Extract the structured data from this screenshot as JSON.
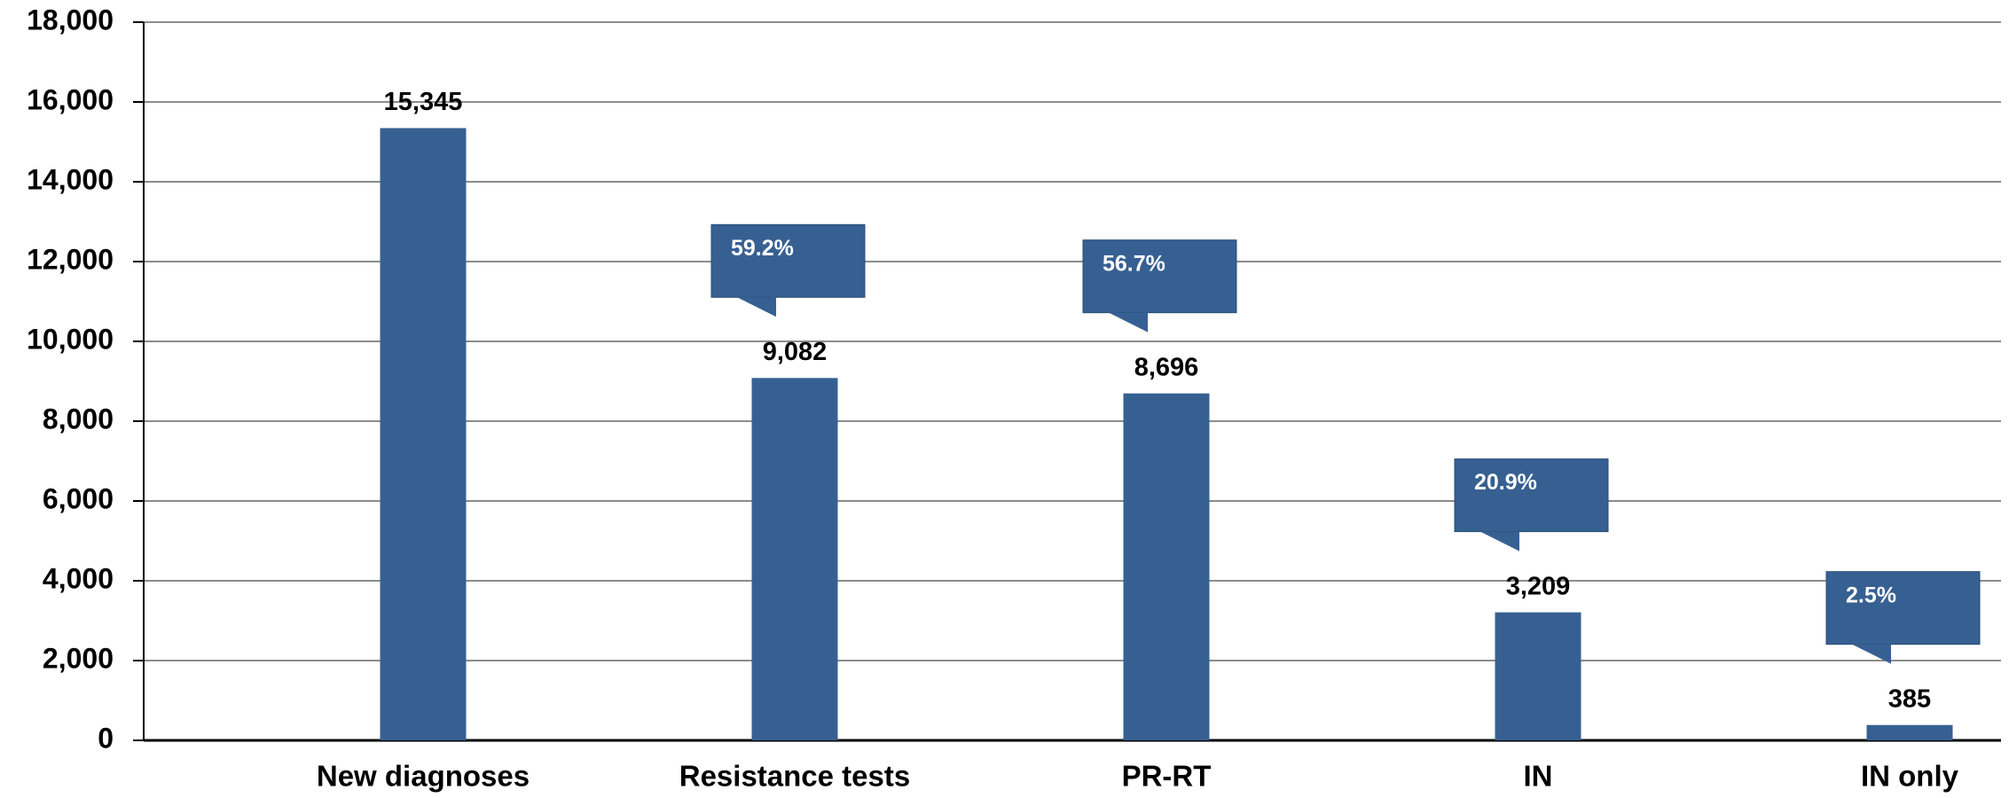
{
  "chart_data": {
    "type": "bar",
    "categories": [
      "New diagnoses",
      "Resistance tests",
      "PR-RT",
      "IN",
      "IN only"
    ],
    "values": [
      15345,
      9082,
      8696,
      3209,
      385
    ],
    "value_labels": [
      "15,345",
      "9,082",
      "8,696",
      "3,209",
      "385"
    ],
    "annotations": [
      null,
      "59.2%",
      "56.7%",
      "20.9%",
      "2.5%"
    ],
    "color": "#376092",
    "ylim": [
      0,
      18000
    ],
    "yticks": [
      0,
      {
        "value": 2000,
        "label": "2,000"
      },
      {
        "value": 4000,
        "label": "4,000"
      },
      {
        "value": 6000,
        "label": "6,000"
      },
      {
        "value": 8000,
        "label": "8,000"
      },
      {
        "value": 10000,
        "label": "10,000"
      },
      {
        "value": 12000,
        "label": "12,000"
      },
      {
        "value": 14000,
        "label": "14,000"
      },
      {
        "value": 16000,
        "label": "16,000"
      },
      {
        "value": 18000,
        "label": "18,000"
      }
    ],
    "grid": true
  }
}
